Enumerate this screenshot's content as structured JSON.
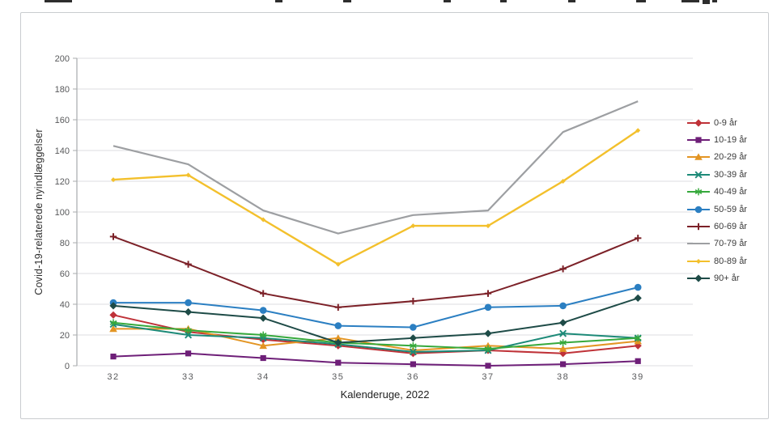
{
  "chart_data": {
    "type": "line",
    "title": "",
    "xlabel": "Kalenderuge, 2022",
    "ylabel": "Covid-19-relaterede nyindlæggelser",
    "x": [
      32,
      33,
      34,
      35,
      36,
      37,
      38,
      39
    ],
    "ylim": [
      0,
      200
    ],
    "ytick_step": 20,
    "grid": true,
    "legend_position": "right",
    "series": [
      {
        "name": "0-9 år",
        "color": "#bf3238",
        "marker": "diamond",
        "values": [
          33,
          22,
          17,
          13,
          8,
          10,
          8,
          13
        ]
      },
      {
        "name": "10-19 år",
        "color": "#6e1f78",
        "marker": "square",
        "values": [
          6,
          8,
          5,
          2,
          1,
          0,
          1,
          3
        ]
      },
      {
        "name": "20-29 år",
        "color": "#e39523",
        "marker": "triangle",
        "values": [
          24,
          24,
          13,
          18,
          10,
          13,
          11,
          16
        ]
      },
      {
        "name": "30-39 år",
        "color": "#1d8a78",
        "marker": "x",
        "values": [
          27,
          20,
          18,
          14,
          9,
          10,
          21,
          18
        ]
      },
      {
        "name": "40-49 år",
        "color": "#36a93c",
        "marker": "star",
        "values": [
          28,
          23,
          20,
          15,
          13,
          11,
          15,
          18
        ]
      },
      {
        "name": "50-59 år",
        "color": "#2b7fc2",
        "marker": "circle",
        "values": [
          41,
          41,
          36,
          26,
          25,
          38,
          39,
          51
        ]
      },
      {
        "name": "60-69 år",
        "color": "#7c2128",
        "marker": "plus",
        "values": [
          84,
          66,
          47,
          38,
          42,
          47,
          63,
          83
        ]
      },
      {
        "name": "70-79 år",
        "color": "#9d9fa2",
        "marker": "none",
        "values": [
          143,
          131,
          101,
          86,
          98,
          101,
          152,
          172
        ]
      },
      {
        "name": "80-89 år",
        "color": "#f3c02c",
        "marker": "diamond-small",
        "values": [
          121,
          124,
          95,
          66,
          91,
          91,
          120,
          153
        ]
      },
      {
        "name": "90+ år",
        "color": "#1e4b47",
        "marker": "diamond",
        "values": [
          39,
          35,
          31,
          15,
          18,
          21,
          28,
          44
        ]
      }
    ]
  }
}
